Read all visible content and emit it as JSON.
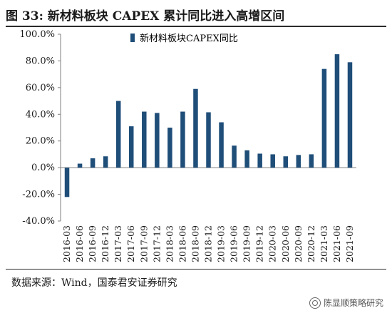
{
  "header": {
    "title": "图 33:  新材料板块 CAPEX 累计同比进入高增区间"
  },
  "footer": {
    "source": "数据来源：Wind，国泰君安证券研究",
    "watermark": "陈显顺策略研究"
  },
  "colors": {
    "bar": "#1f4e79",
    "axis": "#7f7f7f",
    "text": "#1a1a1a"
  },
  "chart_data": {
    "type": "bar",
    "categories": [
      "2016-03",
      "2016-06",
      "2016-09",
      "2016-12",
      "2017-03",
      "2017-06",
      "2017-09",
      "2017-12",
      "2018-03",
      "2018-06",
      "2018-09",
      "2018-12",
      "2019-03",
      "2019-06",
      "2019-09",
      "2019-12",
      "2020-03",
      "2020-06",
      "2020-09",
      "2020-12",
      "2021-03",
      "2021-06",
      "2021-09"
    ],
    "series": [
      {
        "name": "新材料板块CAPEX同比",
        "values": [
          -22,
          3,
          7,
          8.5,
          50,
          31,
          42,
          41,
          30,
          42,
          59,
          41.5,
          34,
          16.5,
          13,
          10.5,
          10,
          8.5,
          9.5,
          10,
          74,
          85,
          79
        ]
      }
    ],
    "yticks": [
      "-40.0%",
      "-20.0%",
      "0.0%",
      "20.0%",
      "40.0%",
      "60.0%",
      "80.0%",
      "100.0%"
    ],
    "ylim": [
      -40,
      100
    ],
    "legend": "top-left",
    "grid": false
  }
}
